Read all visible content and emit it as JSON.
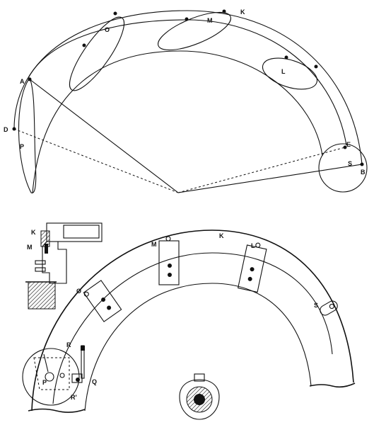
{
  "labels": {
    "top": {
      "A": "A",
      "D": "D",
      "P": "P",
      "O": "O",
      "M": "M",
      "K": "K",
      "L": "L",
      "E": "E",
      "S": "S",
      "B": "B"
    },
    "bottom": {
      "K_detail": "K",
      "M_detail": "M",
      "M": "M",
      "K": "K",
      "L": "L",
      "O": "O",
      "S": "S",
      "R": "R",
      "P": "P",
      "Q": "Q",
      "R1": "R'"
    }
  },
  "colors": {
    "ink": "#111111",
    "paper": "#ffffff"
  }
}
